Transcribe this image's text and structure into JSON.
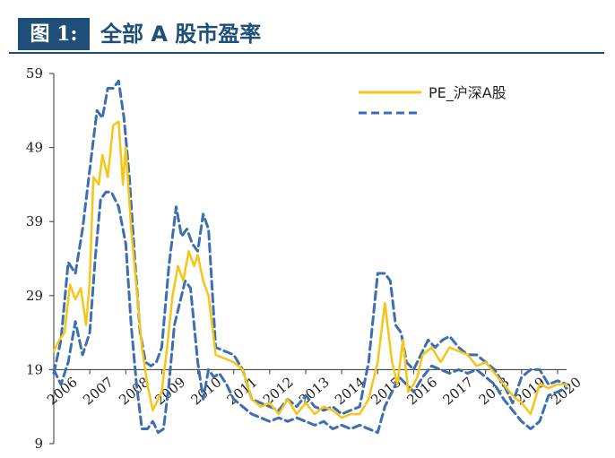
{
  "header": {
    "figure_label": "图 1:",
    "title": "全部 A 股市盈率"
  },
  "colors": {
    "header_bg": "#1f4e79",
    "pe_line": "#f5c518",
    "band_line": "#3d6eb0"
  },
  "chart_data": {
    "type": "line",
    "title": "全部 A 股市盈率",
    "xlabel": "",
    "ylabel": "",
    "xlim": [
      2006.0,
      2020.25
    ],
    "ylim": [
      9,
      59
    ],
    "yticks": [
      9,
      19,
      29,
      39,
      49,
      59
    ],
    "xticks": [
      2006,
      2007,
      2008,
      2009,
      2010,
      2011,
      2012,
      2013,
      2014,
      2015,
      2016,
      2017,
      2018,
      2019,
      2020
    ],
    "grid": false,
    "legend_position": "top-right",
    "series": [
      {
        "name": "PE_沪深A股",
        "style": "solid",
        "x": [
          2006.0,
          2006.15,
          2006.3,
          2006.45,
          2006.6,
          2006.75,
          2006.9,
          2007.0,
          2007.1,
          2007.25,
          2007.35,
          2007.5,
          2007.65,
          2007.8,
          2007.92,
          2008.0,
          2008.15,
          2008.3,
          2008.45,
          2008.6,
          2008.75,
          2008.9,
          2009.0,
          2009.15,
          2009.3,
          2009.45,
          2009.6,
          2009.75,
          2009.9,
          2010.0,
          2010.15,
          2010.3,
          2010.5,
          2010.75,
          2011.0,
          2011.25,
          2011.5,
          2011.75,
          2012.0,
          2012.25,
          2012.5,
          2012.75,
          2013.0,
          2013.25,
          2013.5,
          2013.75,
          2014.0,
          2014.25,
          2014.5,
          2014.75,
          2015.0,
          2015.2,
          2015.4,
          2015.55,
          2015.7,
          2015.85,
          2016.0,
          2016.1,
          2016.25,
          2016.5,
          2016.75,
          2017.0,
          2017.25,
          2017.5,
          2017.75,
          2018.0,
          2018.25,
          2018.5,
          2018.75,
          2019.0,
          2019.25,
          2019.5,
          2019.75,
          2020.0,
          2020.25
        ],
        "y": [
          21.5,
          23,
          24,
          30.5,
          28.5,
          30,
          25,
          31,
          45,
          44,
          48,
          45,
          52,
          52.5,
          44,
          49,
          38,
          30,
          22,
          17,
          13.5,
          15,
          16,
          22,
          29,
          33,
          31,
          35,
          33,
          34.5,
          31,
          29,
          21,
          20.5,
          20,
          19,
          15,
          14,
          14.5,
          13,
          15,
          13,
          14.5,
          13,
          14,
          13.5,
          12.5,
          13,
          13,
          15,
          20,
          28,
          20,
          17,
          23,
          16,
          17,
          18,
          21,
          22,
          20,
          22,
          21.5,
          21,
          19.5,
          20,
          18.5,
          17,
          15.5,
          14.5,
          13,
          17,
          16.5,
          17,
          17
        ]
      },
      {
        "name": "",
        "style": "dashed-upper",
        "x": [
          2006.0,
          2006.2,
          2006.4,
          2006.6,
          2006.8,
          2007.0,
          2007.2,
          2007.35,
          2007.5,
          2007.65,
          2007.8,
          2007.95,
          2008.1,
          2008.25,
          2008.4,
          2008.55,
          2008.7,
          2008.85,
          2009.0,
          2009.2,
          2009.4,
          2009.55,
          2009.7,
          2009.85,
          2010.0,
          2010.15,
          2010.3,
          2010.5,
          2010.75,
          2011.0,
          2011.25,
          2011.5,
          2011.75,
          2012.0,
          2012.25,
          2012.5,
          2012.75,
          2013.0,
          2013.25,
          2013.5,
          2013.75,
          2014.0,
          2014.25,
          2014.5,
          2014.75,
          2015.0,
          2015.2,
          2015.35,
          2015.5,
          2015.65,
          2015.8,
          2016.0,
          2016.2,
          2016.4,
          2016.6,
          2016.8,
          2017.0,
          2017.25,
          2017.5,
          2017.75,
          2018.0,
          2018.25,
          2018.5,
          2018.75,
          2019.0,
          2019.25,
          2019.5,
          2019.75,
          2020.0,
          2020.25
        ],
        "y": [
          18.5,
          23,
          33.5,
          32,
          38,
          46,
          54,
          53,
          57,
          57,
          58,
          53,
          45,
          34,
          24,
          20,
          19.5,
          20,
          22,
          33,
          41,
          37,
          38,
          36,
          35,
          40,
          38,
          22,
          21.5,
          21,
          19,
          15,
          14.5,
          14,
          13.5,
          15,
          14,
          15.5,
          14,
          13.5,
          14,
          13,
          13.5,
          14,
          20,
          32,
          32,
          31,
          25,
          24,
          20,
          19,
          21,
          23,
          22,
          23,
          23.5,
          22,
          21,
          21,
          20,
          19,
          17,
          14.5,
          18,
          19,
          19,
          17,
          17.5,
          17
        ]
      },
      {
        "name": "",
        "style": "dashed-lower",
        "x": [
          2006.0,
          2006.2,
          2006.4,
          2006.6,
          2006.8,
          2007.0,
          2007.15,
          2007.3,
          2007.45,
          2007.6,
          2007.8,
          2008.0,
          2008.15,
          2008.3,
          2008.45,
          2008.6,
          2008.75,
          2008.9,
          2009.05,
          2009.2,
          2009.35,
          2009.5,
          2009.65,
          2009.8,
          2010.0,
          2010.15,
          2010.3,
          2010.45,
          2010.6,
          2010.8,
          2011.0,
          2011.25,
          2011.5,
          2011.75,
          2012.0,
          2012.25,
          2012.5,
          2012.75,
          2013.0,
          2013.25,
          2013.5,
          2013.75,
          2014.0,
          2014.25,
          2014.5,
          2014.75,
          2015.0,
          2015.2,
          2015.4,
          2015.6,
          2015.8,
          2016.0,
          2016.25,
          2016.5,
          2016.75,
          2017.0,
          2017.25,
          2017.5,
          2017.75,
          2018.0,
          2018.25,
          2018.5,
          2018.75,
          2019.0,
          2019.25,
          2019.5,
          2019.75,
          2020.0,
          2020.25
        ],
        "y": [
          19,
          17,
          20,
          25.5,
          21,
          24,
          34,
          42,
          43,
          43,
          41,
          36,
          25,
          17,
          11,
          11,
          12,
          10.5,
          11,
          17,
          25,
          28,
          31,
          30,
          20,
          15,
          19,
          18,
          18.5,
          17,
          15,
          14,
          13,
          12.5,
          12,
          12.5,
          12,
          12.5,
          12,
          11.5,
          12,
          11,
          11.5,
          11,
          11.5,
          11,
          10.5,
          14,
          16,
          18,
          17,
          16,
          18,
          19.5,
          19,
          18.5,
          19,
          18.5,
          19,
          18,
          17,
          15,
          13.5,
          12,
          11,
          12,
          15.5,
          16,
          16.5
        ]
      }
    ]
  }
}
